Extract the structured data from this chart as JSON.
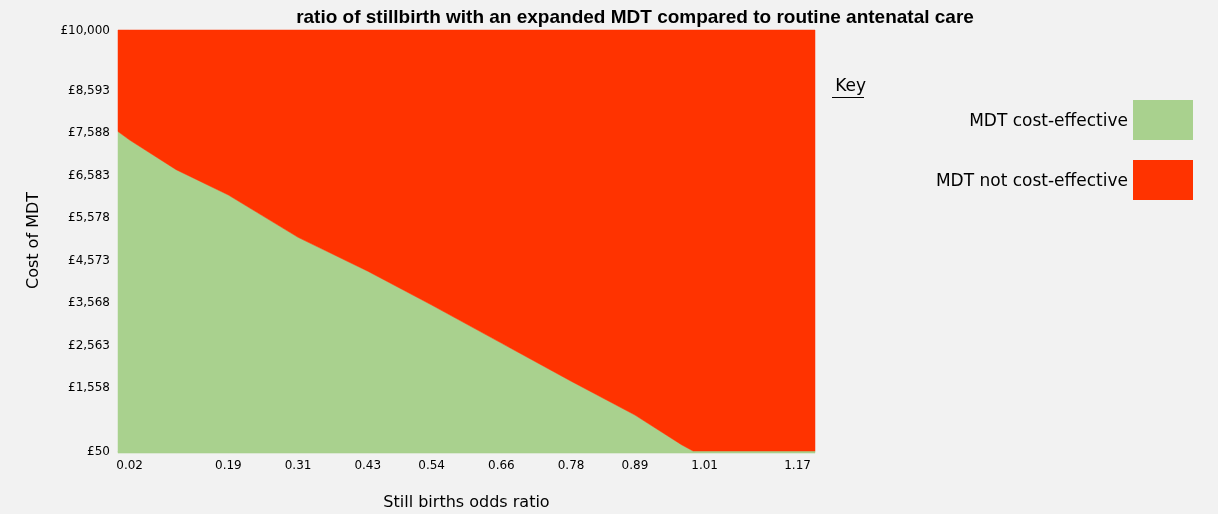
{
  "chart_data": {
    "type": "area",
    "stacked": true,
    "title": "ratio of stillbirth with an expanded MDT compared to routine antenatal care",
    "xlabel": "Still births odds ratio",
    "ylabel": "Cost of MDT",
    "legend_title": "Key",
    "legend": "right",
    "x": [
      0,
      0.02,
      0.1,
      0.19,
      0.31,
      0.43,
      0.54,
      0.66,
      0.78,
      0.89,
      0.97,
      0.99,
      1.2
    ],
    "series": [
      {
        "name": "MDT cost-effective",
        "color": "#a9d18e",
        "values": [
          7600,
          7400,
          6700,
          6100,
          5100,
          4300,
          3500,
          2600,
          1700,
          900,
          200,
          50,
          50
        ]
      },
      {
        "name": "MDT not cost-effective",
        "color": "#ff3300",
        "values": [
          2400,
          2600,
          3300,
          3900,
          4900,
          5700,
          6500,
          7400,
          8300,
          9100,
          9800,
          9950,
          9950
        ]
      }
    ],
    "xlim": [
      0,
      1.2
    ],
    "xticks": [
      0.02,
      0.19,
      0.31,
      0.43,
      0.54,
      0.66,
      0.78,
      0.89,
      1.01,
      1.17
    ],
    "ylim": [
      50,
      10000
    ],
    "yticks": [
      {
        "value": 50,
        "label": "£50"
      },
      {
        "value": 1558,
        "label": "£1,558"
      },
      {
        "value": 2563,
        "label": "£2,563"
      },
      {
        "value": 3568,
        "label": "£3,568"
      },
      {
        "value": 4573,
        "label": "£4,573"
      },
      {
        "value": 5578,
        "label": "£5,578"
      },
      {
        "value": 6583,
        "label": "£6,583"
      },
      {
        "value": 7588,
        "label": "£7,588"
      },
      {
        "value": 8593,
        "label": "£8,593"
      },
      {
        "value": 10000,
        "label": "£10,000"
      }
    ]
  }
}
